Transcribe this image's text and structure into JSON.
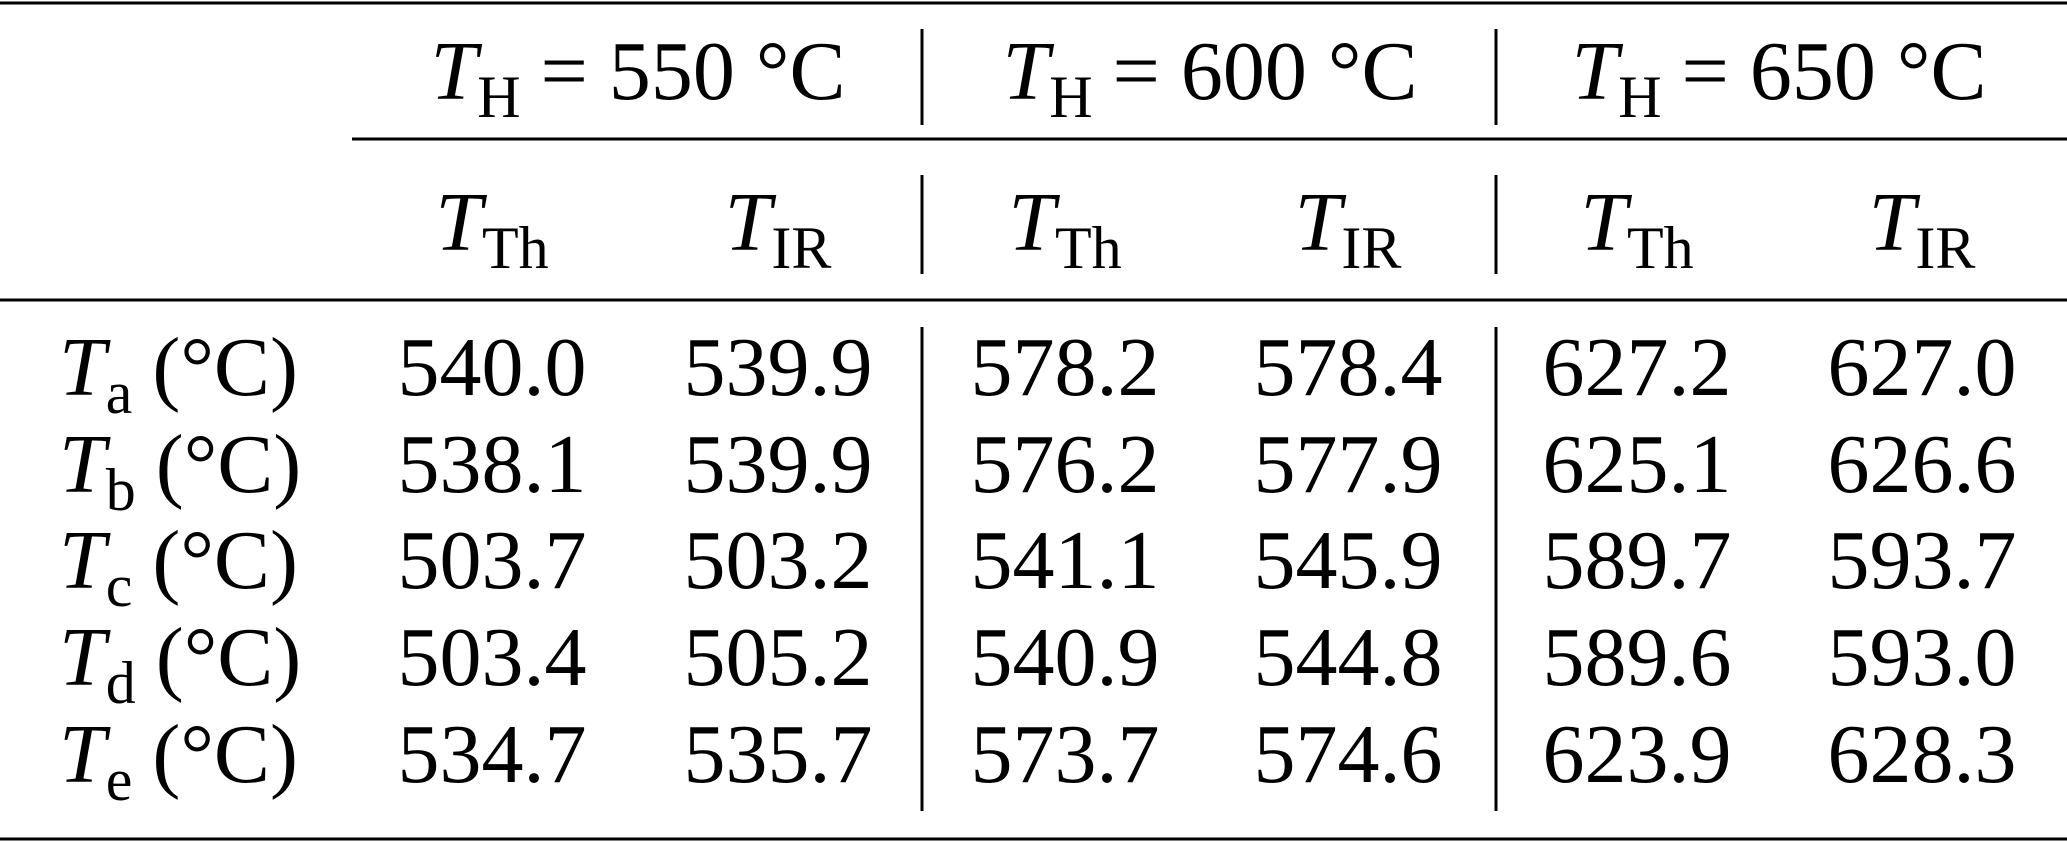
{
  "table": {
    "groups": [
      {
        "symbol": "T",
        "subscript": "H",
        "rest": "= 550 °C"
      },
      {
        "symbol": "T",
        "subscript": "H",
        "rest": "= 600 °C"
      },
      {
        "symbol": "T",
        "subscript": "H",
        "rest": "= 650 °C"
      }
    ],
    "subheaders": [
      {
        "symbol": "T",
        "subscript": "Th"
      },
      {
        "symbol": "T",
        "subscript": "IR"
      },
      {
        "symbol": "T",
        "subscript": "Th"
      },
      {
        "symbol": "T",
        "subscript": "IR"
      },
      {
        "symbol": "T",
        "subscript": "Th"
      },
      {
        "symbol": "T",
        "subscript": "IR"
      }
    ],
    "rows": [
      {
        "label": {
          "symbol": "T",
          "subscript": "a",
          "unit": "(°C)"
        },
        "cells": [
          "540.0",
          "539.9",
          "578.2",
          "578.4",
          "627.2",
          "627.0"
        ]
      },
      {
        "label": {
          "symbol": "T",
          "subscript": "b",
          "unit": "(°C)"
        },
        "cells": [
          "538.1",
          "539.9",
          "576.2",
          "577.9",
          "625.1",
          "626.6"
        ]
      },
      {
        "label": {
          "symbol": "T",
          "subscript": "c",
          "unit": "(°C)"
        },
        "cells": [
          "503.7",
          "503.2",
          "541.1",
          "545.9",
          "589.7",
          "593.7"
        ]
      },
      {
        "label": {
          "symbol": "T",
          "subscript": "d",
          "unit": "(°C)"
        },
        "cells": [
          "503.4",
          "505.2",
          "540.9",
          "544.8",
          "589.6",
          "593.0"
        ]
      },
      {
        "label": {
          "symbol": "T",
          "subscript": "e",
          "unit": "(°C)"
        },
        "cells": [
          "534.7",
          "535.7",
          "573.7",
          "574.6",
          "623.9",
          "628.3"
        ]
      }
    ]
  }
}
